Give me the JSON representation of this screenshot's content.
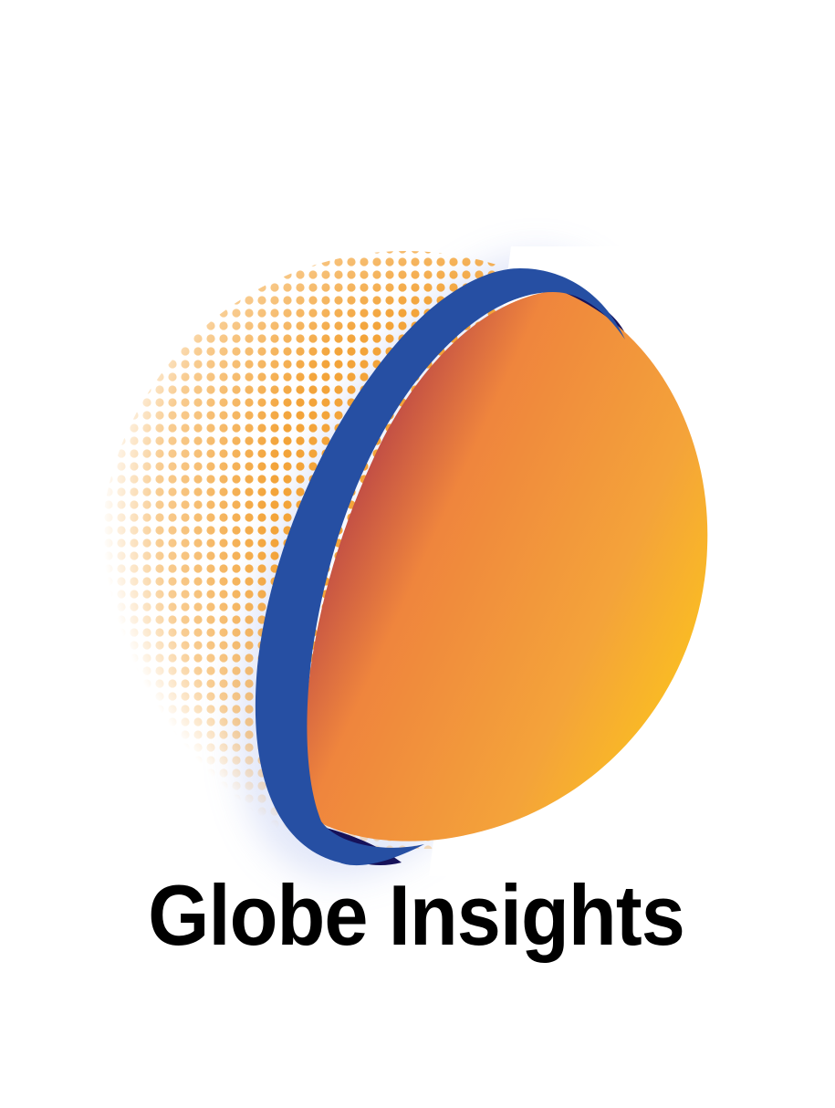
{
  "logo": {
    "name": "Globe Insights",
    "icon": "globe-icon",
    "colors": {
      "ring_blue": "#264fa3",
      "ring_shadow": "#16125a",
      "globe_red": "#b13a47",
      "globe_orange": "#f08a3c",
      "globe_yellow": "#fbbe1f",
      "dots_orange": "#f3a43a",
      "background": "#ffffff",
      "text": "#000000"
    }
  }
}
